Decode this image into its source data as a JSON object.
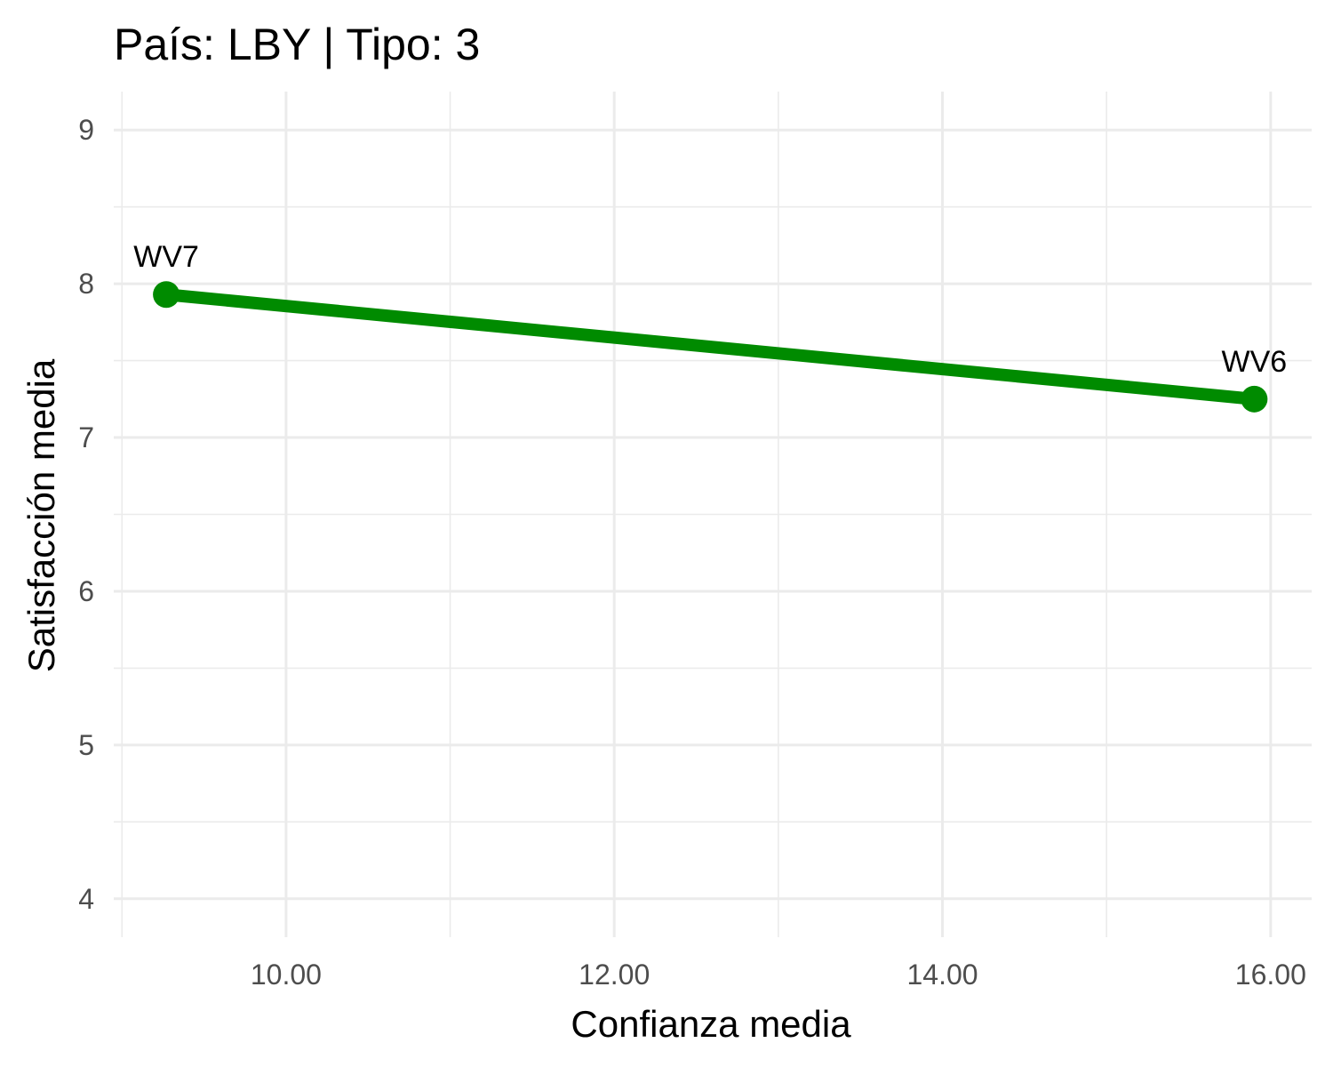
{
  "chart_data": {
    "type": "line",
    "title": "País: LBY | Tipo: 3",
    "xlabel": "Confianza media",
    "ylabel": "Satisfacción media",
    "xlim": [
      8.95,
      16.25
    ],
    "ylim": [
      3.75,
      9.25
    ],
    "x_ticks": [
      10,
      12,
      14,
      16
    ],
    "x_tick_labels": [
      "10.00",
      "12.00",
      "14.00",
      "16.00"
    ],
    "x_minor_ticks": [
      9,
      11,
      13,
      15
    ],
    "y_ticks": [
      4,
      5,
      6,
      7,
      8,
      9
    ],
    "y_tick_labels": [
      "4",
      "5",
      "6",
      "7",
      "8",
      "9"
    ],
    "y_minor_ticks": [
      4.5,
      5.5,
      6.5,
      7.5,
      8.5
    ],
    "grid": true,
    "series": [
      {
        "color": "#008B00",
        "points": [
          {
            "label": "WV7",
            "x": 9.27,
            "y": 7.93
          },
          {
            "label": "WV6",
            "x": 15.9,
            "y": 7.25
          }
        ]
      }
    ]
  }
}
